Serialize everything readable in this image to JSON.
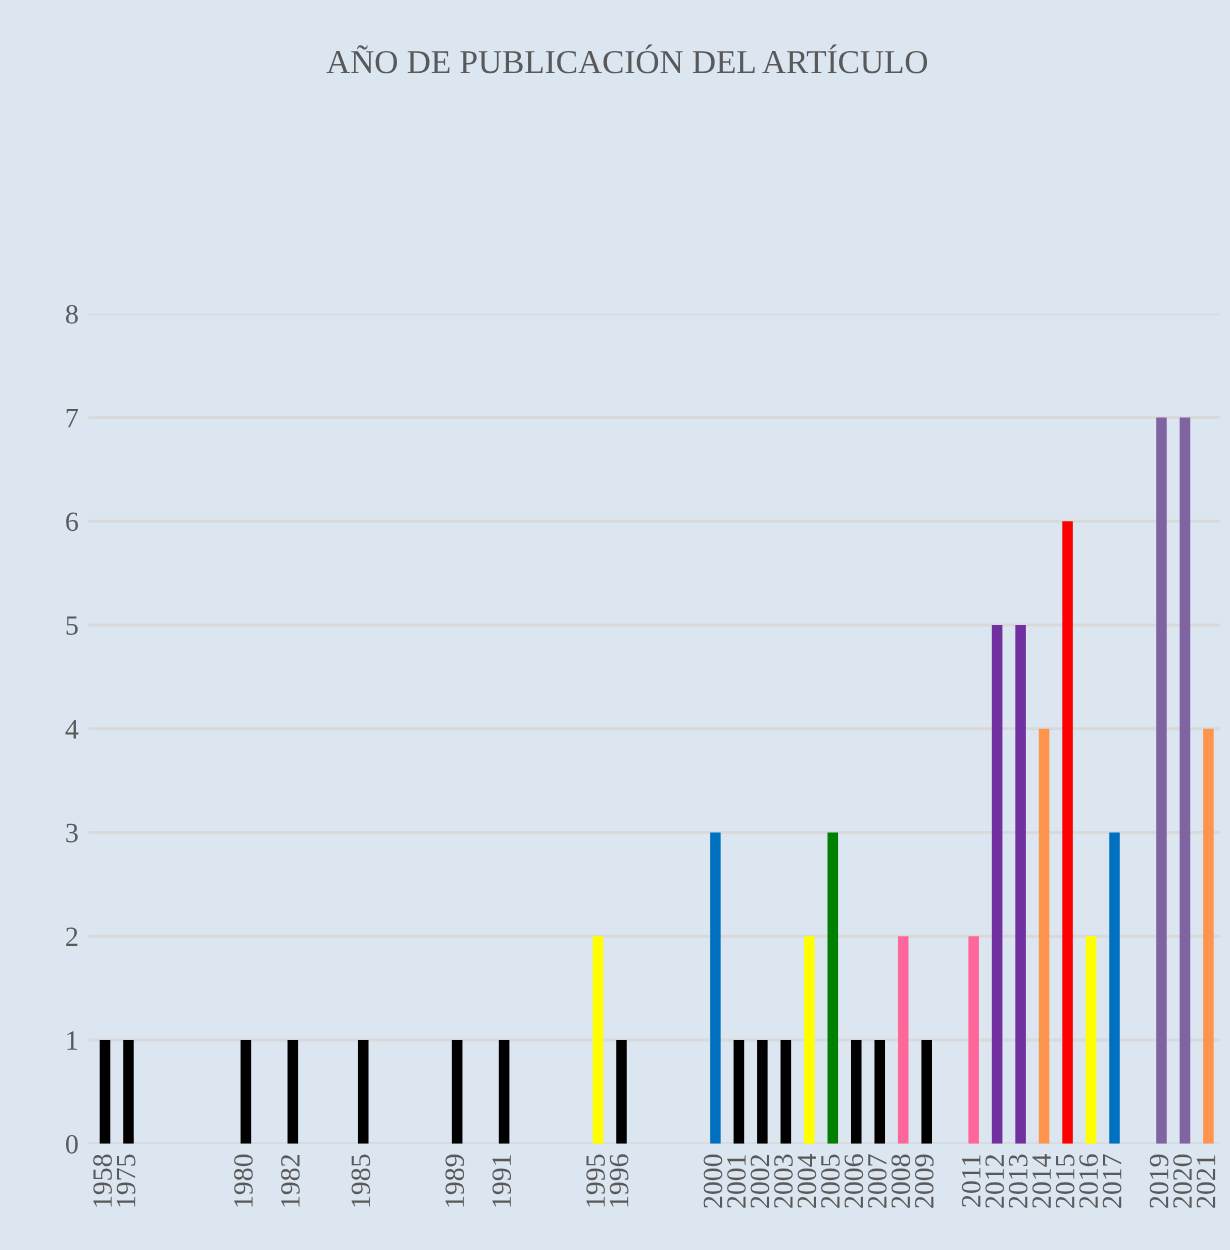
{
  "chart_data": {
    "type": "bar",
    "title": "AÑO DE PUBLICACIÓN DEL ARTÍCULO",
    "categories": [
      "1958",
      "1975",
      null,
      null,
      null,
      null,
      "1980",
      null,
      "1982",
      null,
      null,
      "1985",
      null,
      null,
      null,
      "1989",
      null,
      "1991",
      null,
      null,
      null,
      "1995",
      "1996",
      null,
      null,
      null,
      "2000",
      "2001",
      "2002",
      "2003",
      "2004",
      "2005",
      "2006",
      "2007",
      "2008",
      "2009",
      null,
      "2011",
      "2012",
      "2013",
      "2014",
      "2015",
      "2016",
      "2017",
      null,
      "2019",
      "2020",
      "2021"
    ],
    "values": [
      1,
      1,
      null,
      null,
      null,
      null,
      1,
      null,
      1,
      null,
      null,
      1,
      null,
      null,
      null,
      1,
      null,
      1,
      null,
      null,
      null,
      2,
      1,
      null,
      null,
      null,
      3,
      1,
      1,
      1,
      2,
      3,
      1,
      1,
      2,
      1,
      null,
      2,
      5,
      5,
      4,
      6,
      2,
      3,
      null,
      7,
      7,
      4
    ],
    "colors": [
      "#000000",
      "#000000",
      null,
      null,
      null,
      null,
      "#000000",
      null,
      "#000000",
      null,
      null,
      "#000000",
      null,
      null,
      null,
      "#000000",
      null,
      "#000000",
      null,
      null,
      null,
      "#ffff00",
      "#000000",
      null,
      null,
      null,
      "#0070c0",
      "#000000",
      "#000000",
      "#000000",
      "#ffff00",
      "#008000",
      "#000000",
      "#000000",
      "#ff6699",
      "#000000",
      null,
      "#ff6699",
      "#7030a0",
      "#7030a0",
      "#ff944d",
      "#ff0000",
      "#ffff00",
      "#0070c0",
      null,
      "#8064a2",
      "#8064a2",
      "#ff944d"
    ],
    "ylim": [
      0,
      8
    ],
    "yticks": [
      0,
      1,
      2,
      3,
      4,
      5,
      6,
      7,
      8
    ],
    "grid": "y"
  }
}
